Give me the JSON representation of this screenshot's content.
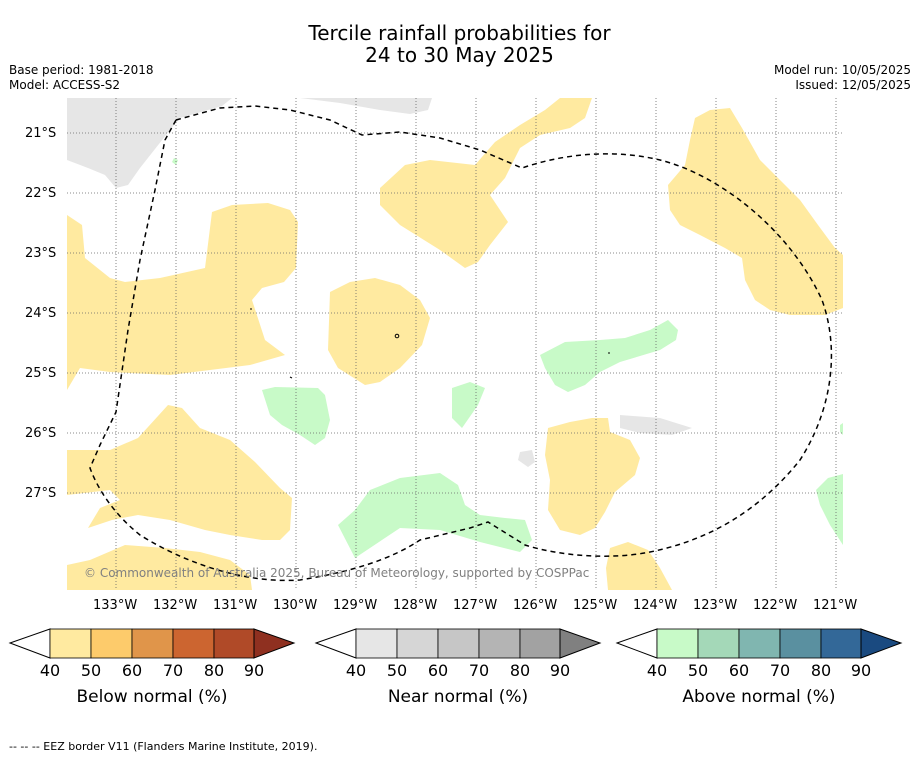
{
  "title_line1": "Tercile rainfall probabilities for",
  "title_line2": "24 to 30 May 2025",
  "meta_left": {
    "base_period": "Base period: 1981-2018",
    "model": "Model: ACCESS-S2"
  },
  "meta_right": {
    "model_run": "Model run: 10/05/2025",
    "issued": "Issued: 12/05/2025"
  },
  "copyright": "© Commonwealth of Australia 2025, Bureau of Meteorology, supported by COSPPac",
  "lat_ticks": [
    "21°S",
    "22°S",
    "23°S",
    "24°S",
    "25°S",
    "26°S",
    "27°S"
  ],
  "lon_ticks": [
    "133°W",
    "132°W",
    "131°W",
    "130°W",
    "129°W",
    "128°W",
    "127°W",
    "126°W",
    "125°W",
    "124°W",
    "123°W",
    "122°W",
    "121°W"
  ],
  "colorbars": [
    {
      "label": "Below normal (%)",
      "ticks": [
        "40",
        "50",
        "60",
        "70",
        "80",
        "90"
      ],
      "colors": [
        "#ffeaa0",
        "#fdcb6b",
        "#e0954a",
        "#cc6530",
        "#b04a28",
        "#8f3020"
      ]
    },
    {
      "label": "Near normal (%)",
      "ticks": [
        "40",
        "50",
        "60",
        "70",
        "80",
        "90"
      ],
      "colors": [
        "#e6e6e6",
        "#d6d6d6",
        "#c6c6c6",
        "#b4b4b4",
        "#a2a2a2",
        "#808080"
      ]
    },
    {
      "label": "Above normal (%)",
      "ticks": [
        "40",
        "50",
        "60",
        "70",
        "80",
        "90"
      ],
      "colors": [
        "#c8fac8",
        "#a4d8b8",
        "#80b6b0",
        "#5a90a0",
        "#336898",
        "#1a4a80"
      ]
    }
  ],
  "footer": "-- -- -- EEZ border V11 (Flanders Marine Institute, 2019)."
}
